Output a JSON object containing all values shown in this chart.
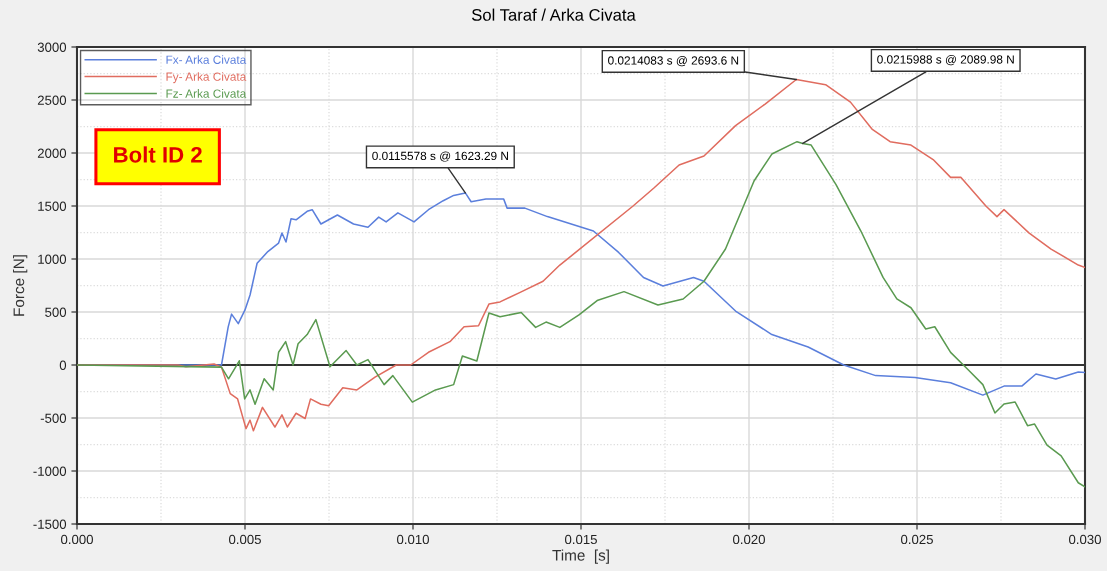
{
  "chart_data": {
    "type": "line",
    "title": "Sol Taraf / Arka Civata",
    "xlabel": "Time  [s]",
    "ylabel": "Force [N]",
    "xlim": [
      0,
      0.03
    ],
    "xticks": [
      {
        "value": 0,
        "label": "0.000"
      },
      {
        "value": 0.005,
        "label": "0.005"
      },
      {
        "value": 0.01,
        "label": "0.010"
      },
      {
        "value": 0.015,
        "label": "0.015"
      },
      {
        "value": 0.02,
        "label": "0.020"
      },
      {
        "value": 0.025,
        "label": "0.025"
      },
      {
        "value": 0.03,
        "label": "0.030"
      }
    ],
    "ylim": [
      -1500,
      3000
    ],
    "yticks": [
      -1500,
      -1000,
      -500,
      0,
      500,
      1000,
      1500,
      2000,
      2500,
      3000
    ],
    "grid": true,
    "legend": "top left",
    "line_style": "solid",
    "ref_lines": [
      {
        "axis": "y",
        "value": 0,
        "color": "#333333"
      }
    ],
    "series": [
      {
        "name": "Fx- Arka Civata",
        "color": "#5b7fdc",
        "x": [
          0,
          0.0043,
          0.0045,
          0.0046,
          0.0048,
          0.005,
          0.00515,
          0.00536,
          0.00568,
          0.006,
          0.0061,
          0.00622,
          0.00637,
          0.00652,
          0.00685,
          0.007,
          0.00726,
          0.00775,
          0.00823,
          0.00866,
          0.00898,
          0.0092,
          0.00955,
          0.01003,
          0.01046,
          0.0109,
          0.01121,
          0.0115578,
          0.01173,
          0.01217,
          0.0127,
          0.0128,
          0.01333,
          0.014,
          0.01537,
          0.01612,
          0.01686,
          0.01744,
          0.01835,
          0.01866,
          0.0196,
          0.02068,
          0.02176,
          0.02282,
          0.02377,
          0.02494,
          0.026,
          0.02696,
          0.02759,
          0.02812,
          0.02854,
          0.02913,
          0.0298,
          0.03
        ],
        "values": [
          0,
          0,
          360,
          480,
          390,
          520,
          660,
          960,
          1070,
          1150,
          1245,
          1160,
          1380,
          1370,
          1450,
          1465,
          1330,
          1415,
          1330,
          1300,
          1395,
          1350,
          1435,
          1350,
          1465,
          1550,
          1600,
          1623.29,
          1540,
          1565,
          1565,
          1480,
          1480,
          1400,
          1264,
          1062,
          826,
          745,
          826,
          790,
          509,
          287,
          170,
          0,
          -100,
          -117,
          -168,
          -284,
          -199,
          -199,
          -85,
          -132,
          -66,
          -70
        ]
      },
      {
        "name": "Fy- Arka Civata",
        "color": "#e06c5f",
        "x": [
          0,
          0.003,
          0.00324,
          0.00408,
          0.0043,
          0.00456,
          0.00478,
          0.00503,
          0.00515,
          0.00525,
          0.00552,
          0.00589,
          0.0061,
          0.00626,
          0.00652,
          0.00679,
          0.00695,
          0.00726,
          0.00749,
          0.00791,
          0.00833,
          0.00887,
          0.0095,
          0.00993,
          0.01046,
          0.0111,
          0.01152,
          0.01195,
          0.01226,
          0.01259,
          0.01322,
          0.01387,
          0.01437,
          0.01484,
          0.01655,
          0.01717,
          0.01792,
          0.01866,
          0.0196,
          0.02048,
          0.0214083,
          0.02228,
          0.02302,
          0.02366,
          0.0242,
          0.02482,
          0.02548,
          0.026,
          0.02631,
          0.02705,
          0.02738,
          0.02759,
          0.02833,
          0.02899,
          0.0298,
          0.03
        ],
        "values": [
          0,
          0,
          -16,
          10,
          -20,
          -270,
          -320,
          -600,
          -520,
          -620,
          -400,
          -585,
          -470,
          -585,
          -455,
          -505,
          -320,
          -370,
          -385,
          -215,
          -235,
          -115,
          0,
          0,
          120,
          220,
          360,
          370,
          575,
          595,
          690,
          790,
          943,
          1062,
          1500,
          1670,
          1887,
          1972,
          2258,
          2462,
          2693.6,
          2645,
          2480,
          2226,
          2107,
          2075,
          1938,
          1770,
          1770,
          1500,
          1400,
          1466,
          1247,
          1094,
          943,
          920
        ]
      },
      {
        "name": "Fz- Arka Civata",
        "color": "#5a9a50",
        "x": [
          0,
          0.0043,
          0.00451,
          0.00472,
          0.00483,
          0.00499,
          0.00515,
          0.0053,
          0.00557,
          0.00584,
          0.006,
          0.00621,
          0.00643,
          0.00658,
          0.00685,
          0.00711,
          0.00753,
          0.00801,
          0.00833,
          0.00866,
          0.00914,
          0.0094,
          0.00998,
          0.01067,
          0.01121,
          0.01147,
          0.0119,
          0.01226,
          0.01259,
          0.01322,
          0.01365,
          0.01396,
          0.01437,
          0.01494,
          0.01548,
          0.01628,
          0.01729,
          0.01804,
          0.01866,
          0.0193,
          0.02015,
          0.02068,
          0.02143,
          0.0215988,
          0.02185,
          0.02259,
          0.02333,
          0.02399,
          0.0244,
          0.02482,
          0.02526,
          0.02553,
          0.026,
          0.02653,
          0.02696,
          0.02732,
          0.02759,
          0.02792,
          0.02829,
          0.0285,
          0.02887,
          0.02929,
          0.0298,
          0.03
        ],
        "values": [
          0,
          -20,
          -130,
          -20,
          40,
          -320,
          -235,
          -370,
          -130,
          -235,
          120,
          220,
          0,
          200,
          287,
          428,
          -16,
          136,
          0,
          51,
          -185,
          -100,
          -350,
          -235,
          -185,
          85,
          38,
          490,
          455,
          496,
          355,
          405,
          355,
          472,
          608,
          692,
          566,
          623,
          790,
          1094,
          1736,
          1990,
          2107,
          2089.98,
          2075,
          1702,
          1264,
          826,
          623,
          540,
          340,
          361,
          119,
          -47,
          -185,
          -453,
          -368,
          -349,
          -572,
          -557,
          -755,
          -858,
          -1111,
          -1150
        ]
      }
    ],
    "annotations": [
      "Bolt ID 2",
      {
        "text": "0.0115578 s @ 1623.29 N",
        "x": 0.0115578,
        "y": 1623.29
      },
      {
        "text": "0.0214083 s @ 2693.6 N",
        "x": 0.0214083,
        "y": 2693.6
      },
      {
        "text": "0.0215988 s @ 2089.98 N",
        "x": 0.0215988,
        "y": 2089.98
      }
    ]
  }
}
